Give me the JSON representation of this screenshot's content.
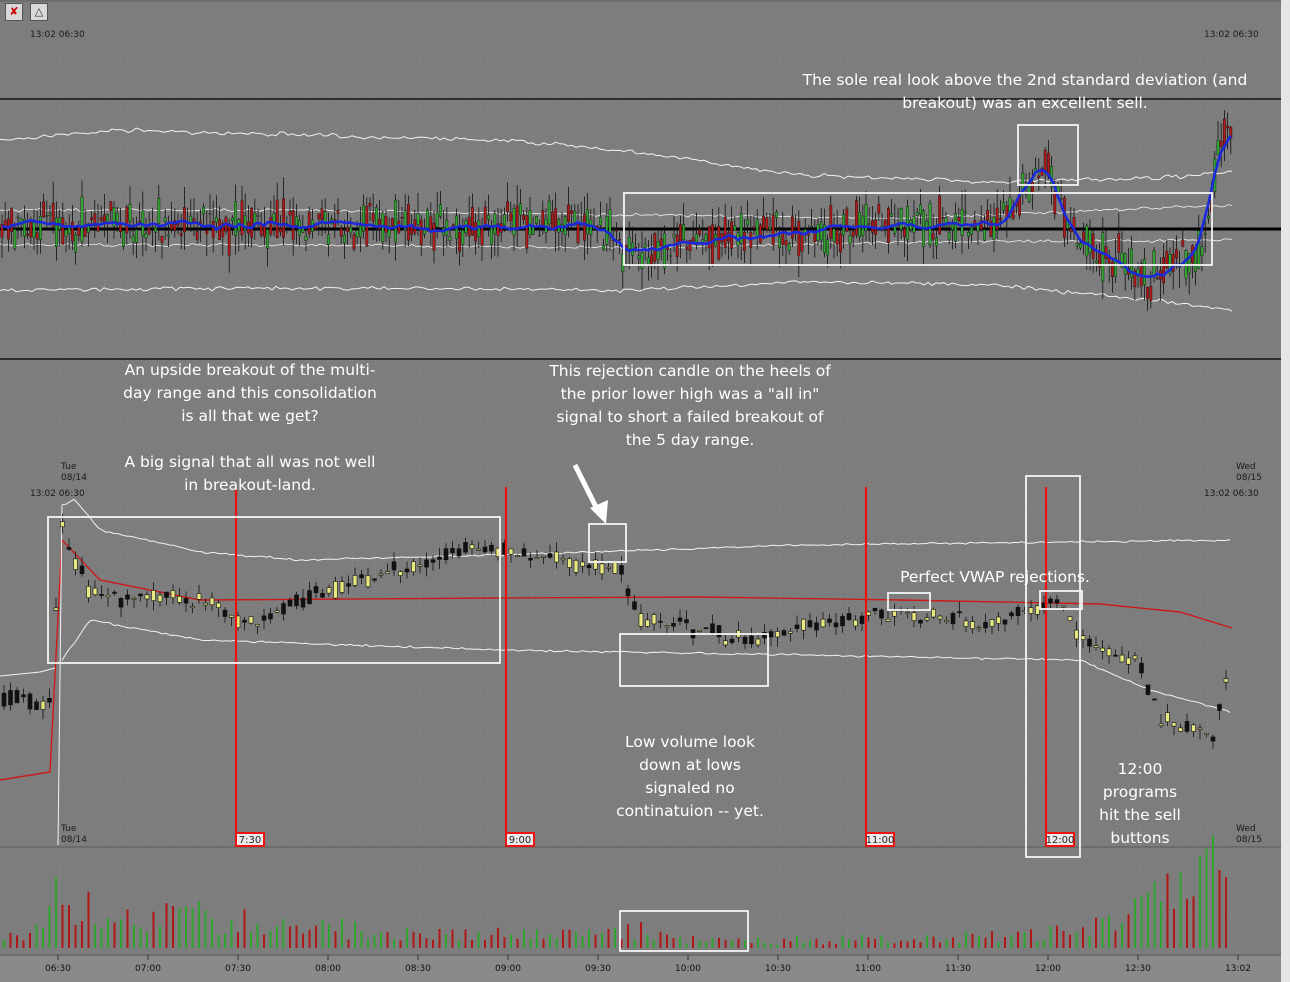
{
  "toolbar": {
    "icons": [
      "crosshair-tool-icon",
      "draw-tool-icon"
    ]
  },
  "panel_labels": {
    "top_left": "13:02  06:30",
    "top_right": "13:02  06:30",
    "mid_left_day": "Tue",
    "mid_left_date": "08/14",
    "mid_left_time": "13:02  06:30",
    "mid_right_day": "Wed",
    "mid_right_date": "08/15",
    "mid_right_time": "13:02  06:30",
    "bottom_left_day": "Tue",
    "bottom_left_date": "08/14",
    "bottom_right_day": "Wed",
    "bottom_right_date": "08/15"
  },
  "annotations": {
    "top_right": "The sole real look above the 2nd standard deviation (and\nbreakout) was an excellent sell.",
    "left_1": "An upside breakout of the multi-\nday range and this consolidation\nis all that we get?",
    "left_2": "A big signal that all was not well\nin breakout-land.",
    "rejection": "This rejection candle  on the heels of\nthe prior lower high was a \"all in\"\nsignal to short a failed breakout of\nthe 5 day range.",
    "vwap": "Perfect VWAP rejections.",
    "low_volume": "Low volume look\ndown at lows\nsignaled no\ncontinatuion -- yet.",
    "programs": "12:00\nprograms\nhit the sell\nbuttons"
  },
  "chart_data": [
    {
      "type": "candlestick",
      "panel": "multi-day",
      "lines": [
        "upper band",
        "lower band",
        "moving average",
        "range high",
        "range low",
        "mid level"
      ]
    },
    {
      "type": "candlestick",
      "panel": "intraday",
      "lines": [
        "VWAP",
        "upper deviation band",
        "lower deviation band"
      ],
      "time_markers": [
        {
          "label": "7:30",
          "x_time": "07:30"
        },
        {
          "label": "9:00",
          "x_time": "09:00"
        },
        {
          "label": "11:00",
          "x_time": "11:00"
        },
        {
          "label": "12:00",
          "x_time": "12:00"
        }
      ]
    },
    {
      "type": "bar",
      "panel": "volume",
      "x_ticks": [
        "06:30",
        "07:00",
        "07:30",
        "08:00",
        "08:30",
        "09:00",
        "09:30",
        "10:00",
        "10:30",
        "11:00",
        "11:30",
        "12:00",
        "12:30",
        "13:02"
      ]
    }
  ],
  "colors": {
    "background": "#7d7d7d",
    "up": "#2fa52f",
    "down": "#b01818",
    "vwap": "#cc1a1a",
    "band": "#f2f2f2",
    "ma": "#1a2adb",
    "marker": "#ee1111"
  }
}
